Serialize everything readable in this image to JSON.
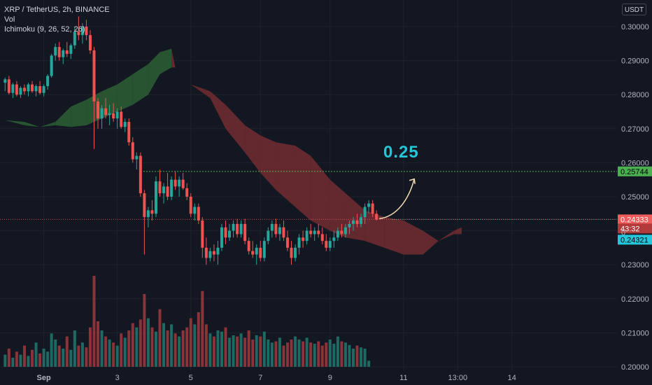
{
  "header": {
    "symbol_line": "XRP / TetherUS, 2h, BINANCE",
    "vol_label": "Vol",
    "ichimoku_label": "Ichimoku (9, 26, 52, 26)",
    "currency": "USDT"
  },
  "annotation": {
    "text": "0.25"
  },
  "colors": {
    "background": "#131722",
    "up": "#26a69a",
    "down": "#ef5350",
    "cloud_bull": "#2b5b34",
    "cloud_bear": "#6e2b30",
    "target_line": "#4caf50",
    "price_line": "#f05b5b",
    "arrow": "#f5deb3",
    "annotation": "#26c6da"
  },
  "chart_data": {
    "type": "candlestick",
    "title": "XRP / TetherUS, 2h, BINANCE",
    "y_axis": {
      "range": [
        0.2,
        0.3
      ],
      "ticks": [
        "0.30000",
        "0.29000",
        "0.28000",
        "0.27000",
        "0.26000",
        "0.25000",
        "0.24000",
        "0.23000",
        "0.22000",
        "0.21000",
        "0.20000"
      ]
    },
    "x_axis": {
      "ticks": [
        {
          "label": "Sep",
          "bar": 10
        },
        {
          "label": "3",
          "bar": 29
        },
        {
          "label": "5",
          "bar": 48
        },
        {
          "label": "7",
          "bar": 66
        },
        {
          "label": "9",
          "bar": 84
        },
        {
          "label": "11",
          "bar": 103
        },
        {
          "label": "13:00",
          "bar": 117
        },
        {
          "label": "14",
          "bar": 131
        }
      ]
    },
    "ohlc": [
      [
        0.2835,
        0.285,
        0.281,
        0.2845
      ],
      [
        0.2845,
        0.2855,
        0.28,
        0.2805
      ],
      [
        0.2805,
        0.2835,
        0.279,
        0.283
      ],
      [
        0.283,
        0.284,
        0.2795,
        0.28
      ],
      [
        0.28,
        0.2825,
        0.279,
        0.282
      ],
      [
        0.282,
        0.283,
        0.28,
        0.281
      ],
      [
        0.281,
        0.2835,
        0.2795,
        0.283
      ],
      [
        0.283,
        0.284,
        0.2805,
        0.281
      ],
      [
        0.281,
        0.283,
        0.2795,
        0.2825
      ],
      [
        0.2825,
        0.284,
        0.28,
        0.2805
      ],
      [
        0.2805,
        0.283,
        0.2795,
        0.2825
      ],
      [
        0.2825,
        0.286,
        0.2815,
        0.2855
      ],
      [
        0.2855,
        0.292,
        0.285,
        0.2915
      ],
      [
        0.2915,
        0.295,
        0.29,
        0.294
      ],
      [
        0.294,
        0.2955,
        0.29,
        0.291
      ],
      [
        0.291,
        0.2935,
        0.289,
        0.293
      ],
      [
        0.293,
        0.2955,
        0.291,
        0.292
      ],
      [
        0.292,
        0.295,
        0.2905,
        0.2945
      ],
      [
        0.2945,
        0.3,
        0.2935,
        0.2985
      ],
      [
        0.2985,
        0.303,
        0.296,
        0.2975
      ],
      [
        0.2975,
        0.301,
        0.295,
        0.3
      ],
      [
        0.3,
        0.302,
        0.296,
        0.2975
      ],
      [
        0.2975,
        0.299,
        0.292,
        0.293
      ],
      [
        0.293,
        0.294,
        0.264,
        0.278
      ],
      [
        0.278,
        0.279,
        0.27,
        0.273
      ],
      [
        0.273,
        0.277,
        0.27,
        0.276
      ],
      [
        0.276,
        0.279,
        0.273,
        0.274
      ],
      [
        0.274,
        0.277,
        0.271,
        0.2745
      ],
      [
        0.2745,
        0.2775,
        0.272,
        0.273
      ],
      [
        0.273,
        0.276,
        0.27,
        0.275
      ],
      [
        0.275,
        0.2765,
        0.27,
        0.2705
      ],
      [
        0.2705,
        0.273,
        0.269,
        0.272
      ],
      [
        0.272,
        0.273,
        0.265,
        0.266
      ],
      [
        0.266,
        0.2675,
        0.26,
        0.261
      ],
      [
        0.261,
        0.263,
        0.258,
        0.262
      ],
      [
        0.262,
        0.263,
        0.25,
        0.251
      ],
      [
        0.251,
        0.252,
        0.233,
        0.244
      ],
      [
        0.244,
        0.247,
        0.241,
        0.246
      ],
      [
        0.246,
        0.249,
        0.243,
        0.245
      ],
      [
        0.245,
        0.256,
        0.244,
        0.2545
      ],
      [
        0.2545,
        0.258,
        0.25,
        0.251
      ],
      [
        0.251,
        0.254,
        0.248,
        0.253
      ],
      [
        0.253,
        0.257,
        0.249,
        0.25
      ],
      [
        0.25,
        0.256,
        0.249,
        0.255
      ],
      [
        0.255,
        0.2575,
        0.252,
        0.253
      ],
      [
        0.253,
        0.256,
        0.25,
        0.255
      ],
      [
        0.255,
        0.257,
        0.252,
        0.2525
      ],
      [
        0.2525,
        0.254,
        0.249,
        0.25
      ],
      [
        0.25,
        0.251,
        0.244,
        0.245
      ],
      [
        0.245,
        0.248,
        0.243,
        0.247
      ],
      [
        0.247,
        0.248,
        0.242,
        0.243
      ],
      [
        0.243,
        0.244,
        0.232,
        0.235
      ],
      [
        0.235,
        0.238,
        0.23,
        0.232
      ],
      [
        0.232,
        0.235,
        0.231,
        0.234
      ],
      [
        0.234,
        0.236,
        0.231,
        0.233
      ],
      [
        0.233,
        0.237,
        0.23,
        0.235
      ],
      [
        0.235,
        0.242,
        0.234,
        0.241
      ],
      [
        0.241,
        0.243,
        0.236,
        0.238
      ],
      [
        0.238,
        0.242,
        0.237,
        0.24
      ],
      [
        0.24,
        0.243,
        0.238,
        0.242
      ],
      [
        0.242,
        0.2435,
        0.238,
        0.239
      ],
      [
        0.239,
        0.243,
        0.238,
        0.242
      ],
      [
        0.242,
        0.2435,
        0.236,
        0.237
      ],
      [
        0.237,
        0.238,
        0.233,
        0.234
      ],
      [
        0.234,
        0.237,
        0.232,
        0.233
      ],
      [
        0.233,
        0.236,
        0.23,
        0.235
      ],
      [
        0.235,
        0.237,
        0.231,
        0.232
      ],
      [
        0.232,
        0.238,
        0.231,
        0.237
      ],
      [
        0.237,
        0.241,
        0.236,
        0.24
      ],
      [
        0.24,
        0.243,
        0.238,
        0.242
      ],
      [
        0.242,
        0.2435,
        0.238,
        0.239
      ],
      [
        0.239,
        0.242,
        0.237,
        0.241
      ],
      [
        0.241,
        0.243,
        0.237,
        0.238
      ],
      [
        0.238,
        0.24,
        0.234,
        0.235
      ],
      [
        0.235,
        0.237,
        0.23,
        0.232
      ],
      [
        0.232,
        0.236,
        0.231,
        0.235
      ],
      [
        0.235,
        0.239,
        0.233,
        0.238
      ],
      [
        0.238,
        0.24,
        0.235,
        0.237
      ],
      [
        0.237,
        0.241,
        0.236,
        0.24
      ],
      [
        0.24,
        0.242,
        0.238,
        0.239
      ],
      [
        0.239,
        0.241,
        0.237,
        0.24
      ],
      [
        0.24,
        0.242,
        0.238,
        0.239
      ],
      [
        0.239,
        0.241,
        0.236,
        0.237
      ],
      [
        0.237,
        0.239,
        0.234,
        0.235
      ],
      [
        0.235,
        0.238,
        0.234,
        0.237
      ],
      [
        0.237,
        0.24,
        0.235,
        0.238
      ],
      [
        0.238,
        0.241,
        0.237,
        0.24
      ],
      [
        0.24,
        0.242,
        0.238,
        0.239
      ],
      [
        0.239,
        0.242,
        0.238,
        0.241
      ],
      [
        0.241,
        0.243,
        0.239,
        0.242
      ],
      [
        0.242,
        0.244,
        0.24,
        0.243
      ],
      [
        0.243,
        0.245,
        0.241,
        0.242
      ],
      [
        0.242,
        0.245,
        0.241,
        0.244
      ],
      [
        0.244,
        0.248,
        0.242,
        0.247
      ],
      [
        0.247,
        0.249,
        0.245,
        0.248
      ],
      [
        0.248,
        0.249,
        0.244,
        0.245
      ],
      [
        0.245,
        0.246,
        0.243,
        0.2433
      ]
    ],
    "volume": [
      20,
      30,
      15,
      25,
      20,
      35,
      18,
      28,
      40,
      22,
      30,
      25,
      55,
      45,
      35,
      30,
      50,
      28,
      60,
      35,
      40,
      32,
      65,
      150,
      75,
      60,
      50,
      45,
      40,
      35,
      55,
      48,
      60,
      72,
      65,
      78,
      120,
      80,
      65,
      58,
      95,
      72,
      60,
      70,
      55,
      50,
      60,
      65,
      80,
      70,
      90,
      125,
      70,
      55,
      50,
      60,
      58,
      65,
      48,
      52,
      50,
      55,
      48,
      60,
      45,
      52,
      50,
      58,
      45,
      40,
      42,
      48,
      35,
      40,
      45,
      50,
      45,
      42,
      48,
      40,
      38,
      42,
      35,
      40,
      45,
      38,
      50,
      42,
      40,
      36,
      30,
      35,
      32,
      30,
      10
    ],
    "ichimoku_cloud": [
      {
        "bar": 0,
        "a": 0.2725,
        "b": 0.2725
      },
      {
        "bar": 5,
        "a": 0.272,
        "b": 0.271
      },
      {
        "bar": 9,
        "a": 0.2705,
        "b": 0.2705
      },
      {
        "bar": 13,
        "a": 0.272,
        "b": 0.271
      },
      {
        "bar": 17,
        "a": 0.2765,
        "b": 0.2705
      },
      {
        "bar": 21,
        "a": 0.2785,
        "b": 0.271
      },
      {
        "bar": 25,
        "a": 0.281,
        "b": 0.273
      },
      {
        "bar": 29,
        "a": 0.283,
        "b": 0.275
      },
      {
        "bar": 33,
        "a": 0.286,
        "b": 0.277
      },
      {
        "bar": 37,
        "a": 0.289,
        "b": 0.28
      },
      {
        "bar": 40,
        "a": 0.2925,
        "b": 0.286
      },
      {
        "bar": 43,
        "a": 0.2935,
        "b": 0.288
      },
      {
        "bar": 44,
        "a": 0.288,
        "b": 0.288
      },
      {
        "bar": 48,
        "a": 0.283,
        "b": 0.283
      },
      {
        "bar": 53,
        "a": 0.281,
        "b": 0.279
      },
      {
        "bar": 57,
        "a": 0.277,
        "b": 0.27
      },
      {
        "bar": 62,
        "a": 0.271,
        "b": 0.263
      },
      {
        "bar": 66,
        "a": 0.268,
        "b": 0.257
      },
      {
        "bar": 70,
        "a": 0.266,
        "b": 0.252
      },
      {
        "bar": 75,
        "a": 0.265,
        "b": 0.247
      },
      {
        "bar": 79,
        "a": 0.262,
        "b": 0.243
      },
      {
        "bar": 84,
        "a": 0.255,
        "b": 0.24
      },
      {
        "bar": 88,
        "a": 0.251,
        "b": 0.238
      },
      {
        "bar": 93,
        "a": 0.246,
        "b": 0.237
      },
      {
        "bar": 98,
        "a": 0.244,
        "b": 0.235
      },
      {
        "bar": 103,
        "a": 0.243,
        "b": 0.233
      },
      {
        "bar": 108,
        "a": 0.24,
        "b": 0.233
      },
      {
        "bar": 112,
        "a": 0.237,
        "b": 0.237
      },
      {
        "bar": 116,
        "a": 0.24,
        "b": 0.239
      },
      {
        "bar": 118,
        "a": 0.241,
        "b": 0.239
      }
    ],
    "price_labels": {
      "target": "0.25744",
      "current": "0.24333",
      "countdown": "43:32",
      "level": "0.24321",
      "partial_tick": "0"
    },
    "levels": {
      "target": 0.25744,
      "current": 0.24333,
      "lower": 0.24321
    },
    "grid": true
  }
}
